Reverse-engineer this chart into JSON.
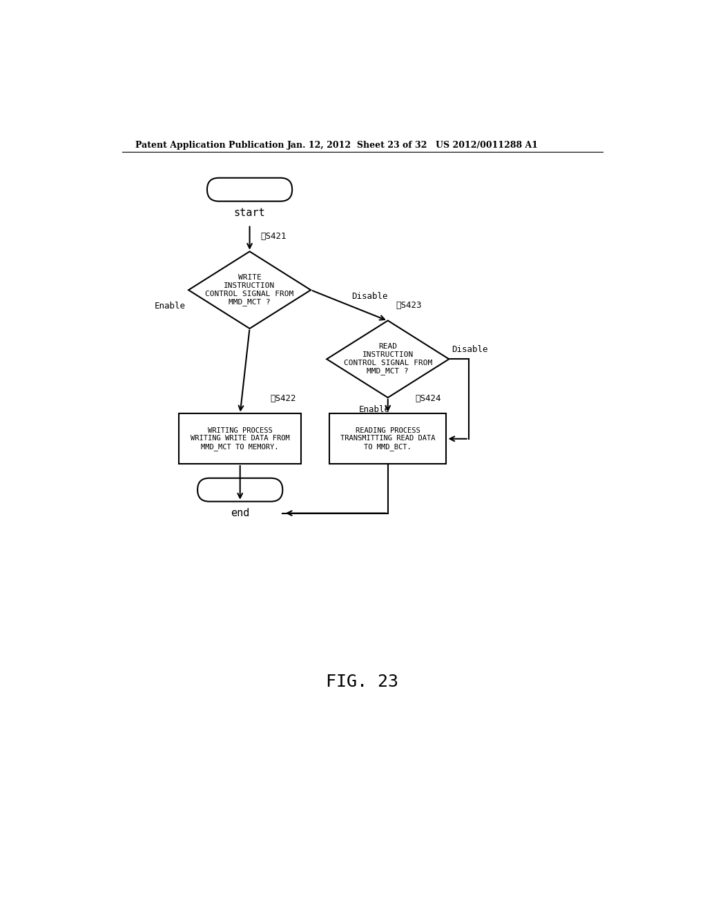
{
  "bg_color": "#ffffff",
  "header_left": "Patent Application Publication",
  "header_mid": "Jan. 12, 2012  Sheet 23 of 32",
  "header_right": "US 2012/0011288 A1",
  "fig_label": "FIG. 23",
  "start_label": "start",
  "end_label": "end",
  "diamond1_label": "WRITE\nINSTRUCTION\nCONTROL SIGNAL FROM\nMMD_MCT ?",
  "diamond1_step": "S421",
  "diamond2_label": "READ\nINSTRUCTION\nCONTROL SIGNAL FROM\nMMD_MCT ?",
  "diamond2_step": "S423",
  "box1_label": "WRITING PROCESS\nWRITING WRITE DATA FROM\nMMD_MCT TO MEMORY.",
  "box1_step": "S422",
  "box2_label": "READING PROCESS\nTRANSMITTING READ DATA\nTO MMD_BCT.",
  "box2_step": "S424",
  "enable1_label": "Enable",
  "disable1_label": "Disable",
  "enable2_label": "Enable",
  "disable2_label": "Disable",
  "line_color": "#000000",
  "text_color": "#000000"
}
